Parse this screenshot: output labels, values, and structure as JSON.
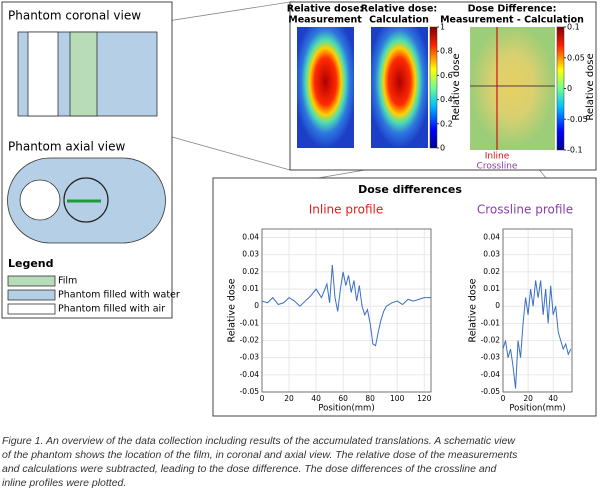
{
  "left_panel": {
    "coronal_title": "Phantom coronal view",
    "axial_title": "Phantom axial view",
    "legend": {
      "title": "Legend",
      "items": [
        {
          "label": "Film",
          "color": "#b7dcb7"
        },
        {
          "label": "Phantom filled with water",
          "color": "#b5cfe6"
        },
        {
          "label": "Phantom filled with air",
          "color": "#ffffff"
        }
      ]
    }
  },
  "dose_maps": {
    "panels": [
      {
        "title": [
          "Relative dose:",
          "Measurement"
        ]
      },
      {
        "title": [
          "Relative dose:",
          "Calculation"
        ]
      },
      {
        "title": [
          "Dose Difference:",
          "Measurement - Calculation"
        ]
      }
    ],
    "colorbar_ticks": [
      0,
      0.2,
      0.4,
      0.6,
      0.8,
      1
    ],
    "colorbar_label": "Relative dose",
    "difference_colorbar_ticks": [
      -0.1,
      -0.05,
      0,
      0.05,
      0.1
    ],
    "difference_colorbar_label": "Relative dose",
    "inline_label": "Inline",
    "crossline_label": "Crossline"
  },
  "section_title": "Dose differences",
  "chart_data": [
    {
      "type": "line",
      "title": "Inline profile",
      "title_color": "#e0201a",
      "xlabel": "Position(mm)",
      "ylabel": "Relative dose",
      "x": [
        0,
        4,
        8,
        12,
        16,
        20,
        24,
        28,
        32,
        36,
        40,
        44,
        48,
        50,
        52,
        54,
        56,
        58,
        60,
        62,
        64,
        66,
        68,
        70,
        72,
        74,
        76,
        78,
        80,
        82,
        84,
        86,
        88,
        90,
        92,
        96,
        100,
        104,
        108,
        112,
        116,
        120,
        125
      ],
      "series": [
        {
          "color": "#3a6fc4",
          "values": [
            0.003,
            0.002,
            0.005,
            0.001,
            0.002,
            0.005,
            0.003,
            0.0,
            0.003,
            0.006,
            0.01,
            0.005,
            0.013,
            0.002,
            0.024,
            0.005,
            -0.003,
            0.01,
            0.02,
            0.012,
            0.018,
            0.008,
            0.015,
            0.003,
            0.012,
            0.0,
            -0.005,
            -0.002,
            -0.01,
            -0.022,
            -0.023,
            -0.015,
            -0.008,
            -0.003,
            0.0,
            0.002,
            0.003,
            0.001,
            0.004,
            0.003,
            0.004,
            0.005,
            0.005
          ]
        }
      ],
      "xlim": [
        0,
        125
      ],
      "xticks": [
        0,
        20,
        40,
        60,
        80,
        100,
        120
      ],
      "ylim": [
        -0.05,
        0.045
      ],
      "yticks": [
        -0.05,
        -0.04,
        -0.03,
        -0.02,
        -0.01,
        0,
        0.01,
        0.02,
        0.03,
        0.04
      ],
      "grid": true
    },
    {
      "type": "line",
      "title": "Crossline profile",
      "title_color": "#8a3db0",
      "xlabel": "Position(mm)",
      "ylabel": "Relative dose",
      "x": [
        0,
        2,
        4,
        6,
        8,
        10,
        12,
        14,
        16,
        18,
        20,
        22,
        24,
        26,
        28,
        30,
        32,
        34,
        36,
        38,
        40,
        42,
        44,
        46,
        48,
        50,
        52,
        54
      ],
      "series": [
        {
          "color": "#3a6fc4",
          "values": [
            -0.025,
            -0.02,
            -0.03,
            -0.025,
            -0.035,
            -0.048,
            -0.02,
            -0.03,
            -0.01,
            0.005,
            -0.005,
            0.01,
            0.0,
            0.015,
            0.005,
            0.015,
            -0.005,
            0.01,
            -0.01,
            0.012,
            -0.005,
            0.0,
            -0.015,
            -0.02,
            -0.025,
            -0.022,
            -0.028,
            -0.025
          ]
        }
      ],
      "xlim": [
        0,
        55
      ],
      "xticks": [
        0,
        20,
        40
      ],
      "ylim": [
        -0.05,
        0.045
      ],
      "yticks": [
        -0.05,
        -0.04,
        -0.03,
        -0.02,
        -0.01,
        0,
        0.01,
        0.02,
        0.03,
        0.04
      ],
      "grid": true
    }
  ],
  "caption": {
    "lines": [
      "Figure 1. An overview of the data collection including results of the accumulated translations. A schematic view",
      "of the phantom shows the location of the film, in coronal and axial view. The relative dose of the measurements",
      "and calculations were subtracted, leading to the dose difference. The dose differences of the crossline and",
      "inline profiles were plotted."
    ]
  }
}
